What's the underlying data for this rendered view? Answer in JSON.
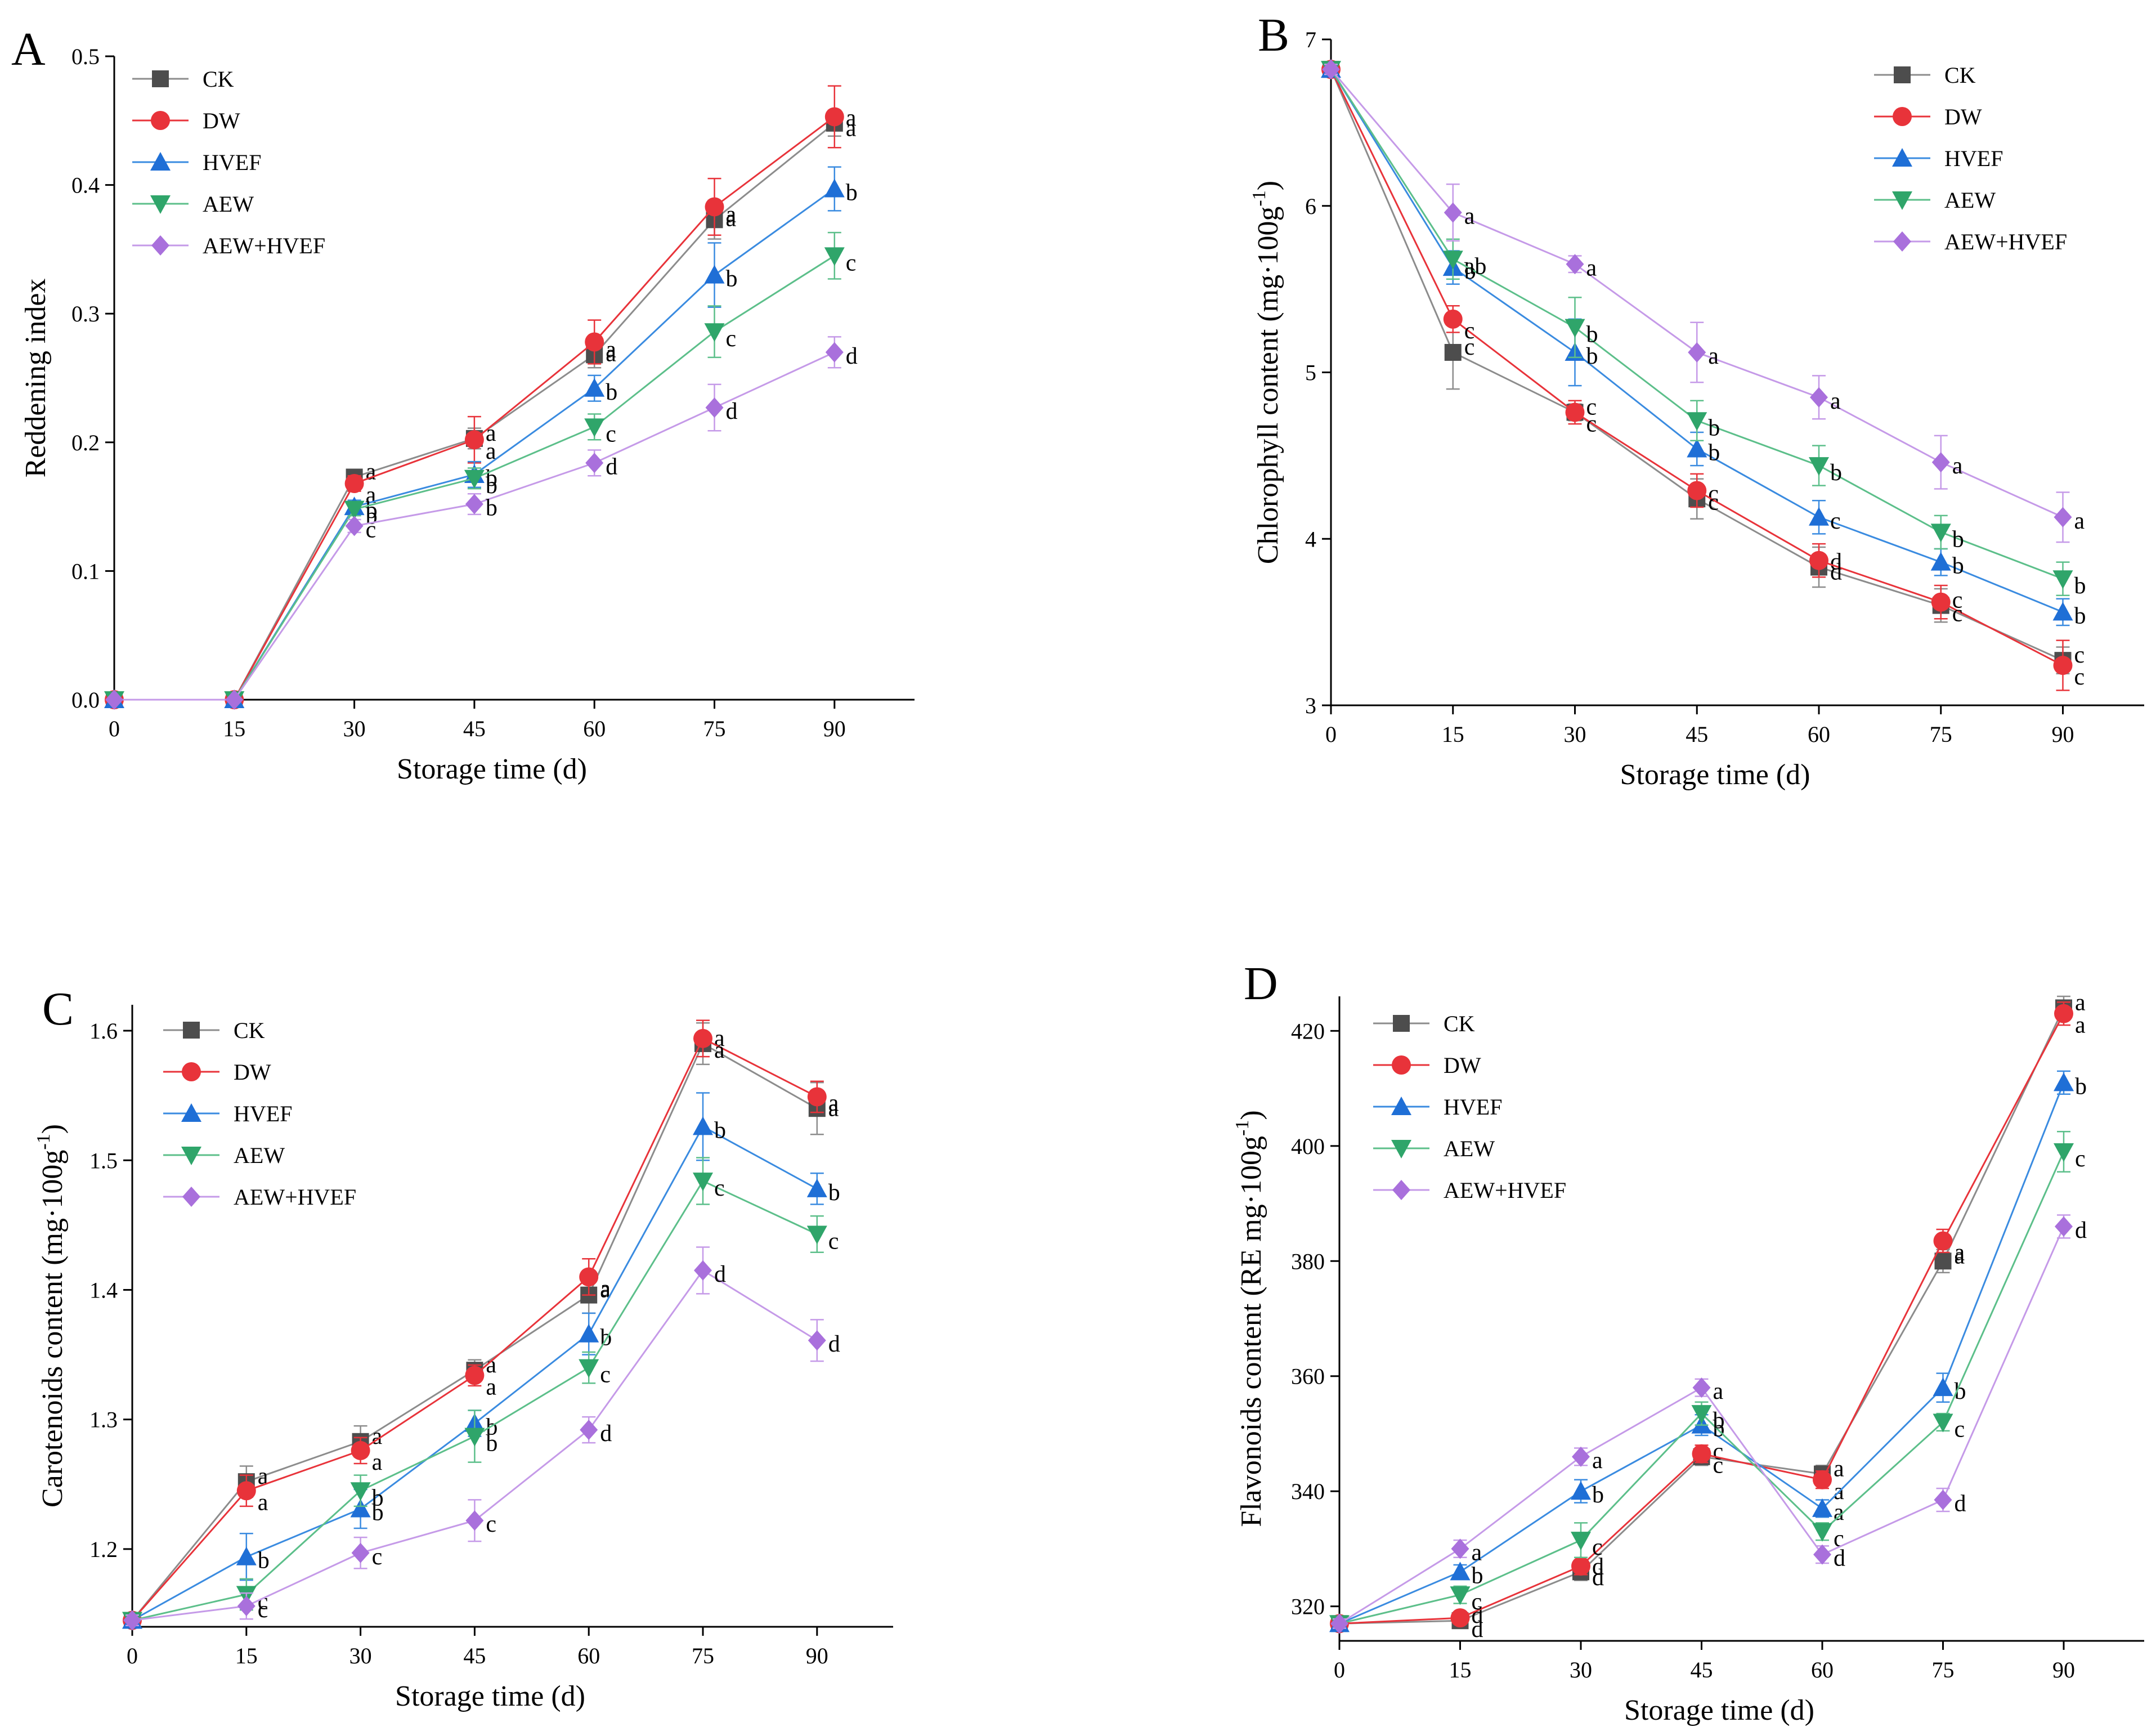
{
  "figure": {
    "series_styles": [
      {
        "name": "CK",
        "color": "#4d4d4d",
        "line_color": "#8c8c8c",
        "marker": "square"
      },
      {
        "name": "DW",
        "color": "#e8333a",
        "line_color": "#e8333a",
        "marker": "circle"
      },
      {
        "name": "HVEF",
        "color": "#1f6fd6",
        "line_color": "#3a8be0",
        "marker": "triangle-up"
      },
      {
        "name": "AEW",
        "color": "#2fa56a",
        "line_color": "#5cbf8a",
        "marker": "triangle-down"
      },
      {
        "name": "AEW+HVEF",
        "color": "#a970dc",
        "line_color": "#c59ae8",
        "marker": "diamond"
      }
    ]
  },
  "chart_data": [
    {
      "panel": "A",
      "type": "line",
      "xlabel": "Storage time (d)",
      "ylabel": "Reddening index",
      "x": [
        0,
        15,
        30,
        45,
        60,
        75,
        90
      ],
      "xlim": [
        0,
        100
      ],
      "ylim": [
        0,
        0.5
      ],
      "xticks": [
        "0",
        "15",
        "30",
        "45",
        "60",
        "75",
        "90"
      ],
      "yticks": [
        0,
        0.1,
        0.2,
        0.3,
        0.4,
        0.5
      ],
      "ytick_labels": [
        "0.0",
        "0.1",
        "0.2",
        "0.3",
        "0.4",
        "0.5"
      ],
      "series": [
        {
          "name": "CK",
          "values": [
            0,
            0,
            0.173,
            0.203,
            0.268,
            0.373,
            0.448
          ],
          "errors": [
            0,
            0,
            0.005,
            0.008,
            0.01,
            0.015,
            0.01
          ],
          "letters": [
            "",
            "",
            "a",
            "a",
            "a",
            "a",
            "a"
          ]
        },
        {
          "name": "DW",
          "values": [
            0,
            0,
            0.168,
            0.202,
            0.278,
            0.383,
            0.453
          ],
          "errors": [
            0,
            0,
            0.006,
            0.018,
            0.017,
            0.022,
            0.024
          ],
          "letters": [
            "",
            "",
            "a",
            "a",
            "a",
            "a",
            "a"
          ]
        },
        {
          "name": "HVEF",
          "values": [
            0,
            0,
            0.15,
            0.175,
            0.242,
            0.33,
            0.397
          ],
          "errors": [
            0,
            0,
            0.005,
            0.01,
            0.01,
            0.025,
            0.017
          ],
          "letters": [
            "",
            "",
            "b",
            "b",
            "b",
            "b",
            "b"
          ]
        },
        {
          "name": "AEW",
          "values": [
            0,
            0,
            0.148,
            0.172,
            0.212,
            0.286,
            0.345
          ],
          "errors": [
            0,
            0,
            0.005,
            0.008,
            0.01,
            0.02,
            0.018
          ],
          "letters": [
            "",
            "",
            "b",
            "b",
            "c",
            "c",
            "c"
          ]
        },
        {
          "name": "AEW+HVEF",
          "values": [
            0,
            0,
            0.135,
            0.152,
            0.184,
            0.227,
            0.27
          ],
          "errors": [
            0,
            0,
            0.005,
            0.008,
            0.01,
            0.018,
            0.012
          ],
          "letters": [
            "",
            "",
            "c",
            "b",
            "d",
            "d",
            "d"
          ]
        }
      ]
    },
    {
      "panel": "B",
      "type": "line",
      "xlabel": "Storage time (d)",
      "ylabel_parts": [
        "Chlorophyll content (mg·100g",
        "-1",
        ")"
      ],
      "x": [
        0,
        15,
        30,
        45,
        60,
        75,
        90
      ],
      "xlim": [
        0,
        100
      ],
      "ylim": [
        3,
        7
      ],
      "xticks": [
        "0",
        "15",
        "30",
        "45",
        "60",
        "75",
        "90"
      ],
      "yticks": [
        3,
        4,
        5,
        6,
        7
      ],
      "ytick_labels": [
        "3",
        "4",
        "5",
        "6",
        "7"
      ],
      "series": [
        {
          "name": "CK",
          "values": [
            6.82,
            5.12,
            4.76,
            4.24,
            3.83,
            3.6,
            3.27
          ],
          "errors": [
            0.03,
            0.22,
            0.05,
            0.12,
            0.12,
            0.1,
            0.08
          ],
          "letters": [
            "",
            "c",
            "c",
            "c",
            "d",
            "c",
            "c"
          ]
        },
        {
          "name": "DW",
          "values": [
            6.82,
            5.32,
            4.76,
            4.29,
            3.87,
            3.62,
            3.24
          ],
          "errors": [
            0.03,
            0.08,
            0.07,
            0.1,
            0.1,
            0.1,
            0.15
          ],
          "letters": [
            "",
            "c",
            "c",
            "c",
            "d",
            "c",
            "c"
          ]
        },
        {
          "name": "HVEF",
          "values": [
            6.82,
            5.63,
            5.12,
            4.54,
            4.13,
            3.86,
            3.56
          ],
          "errors": [
            0.03,
            0.1,
            0.2,
            0.1,
            0.1,
            0.08,
            0.08
          ],
          "letters": [
            "",
            "b",
            "b",
            "b",
            "c",
            "b",
            "b"
          ]
        },
        {
          "name": "AEW",
          "values": [
            6.82,
            5.68,
            5.27,
            4.71,
            4.44,
            4.04,
            3.76
          ],
          "errors": [
            0.03,
            0.12,
            0.18,
            0.12,
            0.12,
            0.1,
            0.1
          ],
          "letters": [
            "",
            "ab",
            "b",
            "b",
            "b",
            "b",
            "b"
          ]
        },
        {
          "name": "AEW+HVEF",
          "values": [
            6.82,
            5.96,
            5.65,
            5.12,
            4.85,
            4.46,
            4.13
          ],
          "errors": [
            0.03,
            0.17,
            0.05,
            0.18,
            0.13,
            0.16,
            0.15
          ],
          "letters": [
            "",
            "a",
            "a",
            "a",
            "a",
            "a",
            "a"
          ]
        }
      ]
    },
    {
      "panel": "C",
      "type": "line",
      "xlabel": "Storage time (d)",
      "ylabel_parts": [
        "Carotenoids content (mg·100g",
        "-1",
        ")"
      ],
      "x": [
        0,
        15,
        30,
        45,
        60,
        75,
        90
      ],
      "xlim": [
        0,
        100
      ],
      "ylim": [
        1.14,
        1.62
      ],
      "xticks": [
        "0",
        "15",
        "30",
        "45",
        "60",
        "75",
        "90"
      ],
      "yticks": [
        1.2,
        1.3,
        1.4,
        1.5,
        1.6
      ],
      "ytick_labels": [
        "1.2",
        "1.3",
        "1.4",
        "1.5",
        "1.6"
      ],
      "series": [
        {
          "name": "CK",
          "values": [
            1.145,
            1.252,
            1.283,
            1.338,
            1.396,
            1.59,
            1.54
          ],
          "errors": [
            0.004,
            0.012,
            0.012,
            0.008,
            0.014,
            0.016,
            0.02
          ],
          "letters": [
            "",
            "a",
            "a",
            "a",
            "a",
            "a",
            "a"
          ]
        },
        {
          "name": "DW",
          "values": [
            1.145,
            1.245,
            1.276,
            1.334,
            1.41,
            1.594,
            1.549
          ],
          "errors": [
            0.004,
            0.012,
            0.01,
            0.008,
            0.014,
            0.014,
            0.012
          ],
          "letters": [
            "",
            "a",
            "a",
            "a",
            "a",
            "a",
            "a"
          ]
        },
        {
          "name": "HVEF",
          "values": [
            1.145,
            1.194,
            1.231,
            1.297,
            1.366,
            1.526,
            1.478
          ],
          "errors": [
            0.004,
            0.018,
            0.015,
            0.01,
            0.016,
            0.026,
            0.012
          ],
          "letters": [
            "",
            "b",
            "b",
            "b",
            "b",
            "b",
            "b"
          ]
        },
        {
          "name": "AEW",
          "values": [
            1.145,
            1.165,
            1.245,
            1.287,
            1.34,
            1.484,
            1.443
          ],
          "errors": [
            0.004,
            0.012,
            0.012,
            0.02,
            0.012,
            0.018,
            0.014
          ],
          "letters": [
            "",
            "c",
            "b",
            "b",
            "c",
            "c",
            "c"
          ]
        },
        {
          "name": "AEW+HVEF",
          "values": [
            1.145,
            1.156,
            1.197,
            1.222,
            1.292,
            1.415,
            1.361
          ],
          "errors": [
            0.004,
            0.01,
            0.012,
            0.016,
            0.01,
            0.018,
            0.016
          ],
          "letters": [
            "",
            "c",
            "c",
            "c",
            "d",
            "d",
            "d"
          ]
        }
      ]
    },
    {
      "panel": "D",
      "type": "line",
      "xlabel": "Storage time (d)",
      "ylabel_parts": [
        "Flavonoids content (RE mg·100g",
        "-1",
        ")"
      ],
      "x": [
        0,
        15,
        30,
        45,
        60,
        75,
        90
      ],
      "xlim": [
        0,
        100
      ],
      "ylim": [
        314,
        426
      ],
      "xticks": [
        "0",
        "15",
        "30",
        "45",
        "60",
        "75",
        "90"
      ],
      "yticks": [
        320,
        340,
        360,
        380,
        400,
        420
      ],
      "ytick_labels": [
        "320",
        "340",
        "360",
        "380",
        "400",
        "420"
      ],
      "series": [
        {
          "name": "CK",
          "values": [
            317,
            317.5,
            326,
            346,
            343,
            380,
            424
          ],
          "errors": [
            0.8,
            1,
            1.5,
            1.5,
            1.5,
            2,
            2
          ],
          "letters": [
            "",
            "d",
            "d",
            "c",
            "a",
            "a",
            "a"
          ]
        },
        {
          "name": "DW",
          "values": [
            317,
            318,
            327,
            346.5,
            342,
            383.5,
            423
          ],
          "errors": [
            0.8,
            1,
            1.5,
            1.5,
            1.5,
            2,
            2
          ],
          "letters": [
            "",
            "d",
            "d",
            "c",
            "a",
            "a",
            "a"
          ]
        },
        {
          "name": "HVEF",
          "values": [
            317,
            326,
            340,
            351.5,
            337,
            358,
            411
          ],
          "errors": [
            0.8,
            1.2,
            2,
            1.8,
            1.5,
            2.5,
            2
          ],
          "letters": [
            "",
            "b",
            "b",
            "b",
            "a",
            "b",
            "b"
          ]
        },
        {
          "name": "AEW",
          "values": [
            317,
            322,
            331.5,
            353.5,
            333,
            352,
            399
          ],
          "errors": [
            0.8,
            1.5,
            3,
            2,
            1.5,
            1.5,
            3.5
          ],
          "letters": [
            "",
            "c",
            "c",
            "b",
            "c",
            "c",
            "c"
          ]
        },
        {
          "name": "AEW+HVEF",
          "values": [
            317,
            330,
            346,
            358,
            329,
            338.5,
            386
          ],
          "errors": [
            0.8,
            1.5,
            1.5,
            1.5,
            1.5,
            2,
            2
          ],
          "letters": [
            "",
            "a",
            "a",
            "a",
            "d",
            "d",
            "d"
          ]
        }
      ]
    }
  ]
}
